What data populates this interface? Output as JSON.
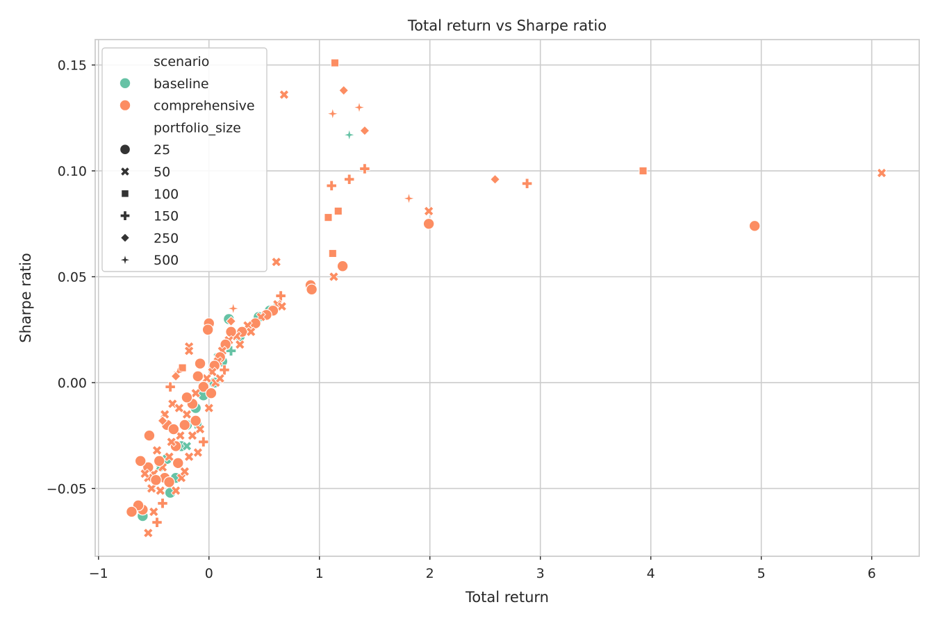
{
  "chart_data": {
    "type": "scatter",
    "title": "Total return vs Sharpe ratio",
    "xlabel": "Total return",
    "ylabel": "Sharpe ratio",
    "xlim": [
      -1.03,
      6.43
    ],
    "ylim": [
      -0.082,
      0.162
    ],
    "x_ticks": [
      -1,
      0,
      1,
      2,
      3,
      4,
      5,
      6
    ],
    "x_tick_labels": [
      "−1",
      "0",
      "1",
      "2",
      "3",
      "4",
      "5",
      "6"
    ],
    "y_ticks": [
      -0.05,
      0.0,
      0.05,
      0.1,
      0.15
    ],
    "y_tick_labels": [
      "−0.05",
      "0.00",
      "0.05",
      "0.10",
      "0.15"
    ],
    "grid": true,
    "legend_placement": "top-left",
    "legend": {
      "hue_title": "scenario",
      "hue_entries": [
        {
          "label": "baseline",
          "color": "#66c2a5"
        },
        {
          "label": "comprehensive",
          "color": "#fc8d62"
        }
      ],
      "style_title": "portfolio_size",
      "style_entries": [
        {
          "label": "25",
          "marker": "circle"
        },
        {
          "label": "50",
          "marker": "x"
        },
        {
          "label": "100",
          "marker": "square"
        },
        {
          "label": "150",
          "marker": "plus"
        },
        {
          "label": "250",
          "marker": "diamond"
        },
        {
          "label": "500",
          "marker": "star"
        }
      ]
    },
    "series": [
      {
        "name": "baseline",
        "color": "#66c2a5",
        "points": [
          {
            "x": 1.27,
            "y": 0.117,
            "marker": "star"
          },
          {
            "x": -0.38,
            "y": -0.036,
            "marker": "circle"
          },
          {
            "x": -0.35,
            "y": -0.052,
            "marker": "circle"
          },
          {
            "x": -0.3,
            "y": -0.045,
            "marker": "circle"
          },
          {
            "x": -0.25,
            "y": -0.03,
            "marker": "circle"
          },
          {
            "x": -0.2,
            "y": -0.02,
            "marker": "circle"
          },
          {
            "x": -0.12,
            "y": -0.012,
            "marker": "circle"
          },
          {
            "x": -0.05,
            "y": -0.006,
            "marker": "circle"
          },
          {
            "x": 0.05,
            "y": 0.0,
            "marker": "circle"
          },
          {
            "x": 0.12,
            "y": 0.01,
            "marker": "circle"
          },
          {
            "x": 0.18,
            "y": 0.03,
            "marker": "circle"
          },
          {
            "x": 0.28,
            "y": 0.022,
            "marker": "circle"
          },
          {
            "x": 0.45,
            "y": 0.031,
            "marker": "circle"
          },
          {
            "x": 0.55,
            "y": 0.034,
            "marker": "circle"
          },
          {
            "x": -0.6,
            "y": -0.063,
            "marker": "circle"
          },
          {
            "x": -0.45,
            "y": -0.04,
            "marker": "x"
          },
          {
            "x": -0.2,
            "y": -0.03,
            "marker": "x"
          },
          {
            "x": 0.08,
            "y": 0.012,
            "marker": "x"
          },
          {
            "x": 0.35,
            "y": 0.025,
            "marker": "x"
          },
          {
            "x": 0.6,
            "y": 0.036,
            "marker": "plus"
          },
          {
            "x": -0.1,
            "y": -0.02,
            "marker": "square"
          },
          {
            "x": 0.2,
            "y": 0.015,
            "marker": "plus"
          }
        ]
      },
      {
        "name": "comprehensive",
        "color": "#fc8d62",
        "points": [
          {
            "x": 1.14,
            "y": 0.151,
            "marker": "square"
          },
          {
            "x": 0.68,
            "y": 0.136,
            "marker": "x"
          },
          {
            "x": 1.22,
            "y": 0.138,
            "marker": "diamond"
          },
          {
            "x": 1.12,
            "y": 0.127,
            "marker": "star"
          },
          {
            "x": 1.36,
            "y": 0.13,
            "marker": "star"
          },
          {
            "x": 1.41,
            "y": 0.119,
            "marker": "diamond"
          },
          {
            "x": 1.41,
            "y": 0.101,
            "marker": "plus"
          },
          {
            "x": 1.27,
            "y": 0.096,
            "marker": "plus"
          },
          {
            "x": 1.11,
            "y": 0.093,
            "marker": "plus"
          },
          {
            "x": 1.17,
            "y": 0.081,
            "marker": "square"
          },
          {
            "x": 1.08,
            "y": 0.078,
            "marker": "square"
          },
          {
            "x": 1.12,
            "y": 0.061,
            "marker": "square"
          },
          {
            "x": 1.21,
            "y": 0.055,
            "marker": "circle"
          },
          {
            "x": 1.13,
            "y": 0.05,
            "marker": "x"
          },
          {
            "x": 1.81,
            "y": 0.087,
            "marker": "star"
          },
          {
            "x": 1.99,
            "y": 0.081,
            "marker": "x"
          },
          {
            "x": 1.99,
            "y": 0.075,
            "marker": "circle"
          },
          {
            "x": 2.59,
            "y": 0.096,
            "marker": "diamond"
          },
          {
            "x": 2.88,
            "y": 0.094,
            "marker": "plus"
          },
          {
            "x": 3.93,
            "y": 0.1,
            "marker": "square"
          },
          {
            "x": 4.94,
            "y": 0.074,
            "marker": "circle"
          },
          {
            "x": 6.09,
            "y": 0.099,
            "marker": "x"
          },
          {
            "x": 0.61,
            "y": 0.057,
            "marker": "x"
          },
          {
            "x": 0.92,
            "y": 0.046,
            "marker": "circle"
          },
          {
            "x": 0.93,
            "y": 0.044,
            "marker": "circle"
          },
          {
            "x": 0.65,
            "y": 0.041,
            "marker": "plus"
          },
          {
            "x": 0.62,
            "y": 0.037,
            "marker": "x"
          },
          {
            "x": 0.66,
            "y": 0.036,
            "marker": "x"
          },
          {
            "x": 0.58,
            "y": 0.034,
            "marker": "circle"
          },
          {
            "x": 0.52,
            "y": 0.032,
            "marker": "circle"
          },
          {
            "x": 0.47,
            "y": 0.031,
            "marker": "x"
          },
          {
            "x": 0.42,
            "y": 0.028,
            "marker": "circle"
          },
          {
            "x": 0.35,
            "y": 0.027,
            "marker": "x"
          },
          {
            "x": 0.3,
            "y": 0.024,
            "marker": "circle"
          },
          {
            "x": 0.25,
            "y": 0.022,
            "marker": "x"
          },
          {
            "x": 0.22,
            "y": 0.035,
            "marker": "star"
          },
          {
            "x": 0.2,
            "y": 0.029,
            "marker": "diamond"
          },
          {
            "x": 0.2,
            "y": 0.024,
            "marker": "circle"
          },
          {
            "x": 0.18,
            "y": 0.02,
            "marker": "x"
          },
          {
            "x": 0.15,
            "y": 0.018,
            "marker": "circle"
          },
          {
            "x": 0.12,
            "y": 0.015,
            "marker": "x"
          },
          {
            "x": 0.1,
            "y": 0.012,
            "marker": "circle"
          },
          {
            "x": 0.08,
            "y": 0.01,
            "marker": "x"
          },
          {
            "x": 0.05,
            "y": 0.008,
            "marker": "circle"
          },
          {
            "x": 0.03,
            "y": 0.005,
            "marker": "x"
          },
          {
            "x": 0.0,
            "y": 0.028,
            "marker": "circle"
          },
          {
            "x": -0.01,
            "y": 0.025,
            "marker": "circle"
          },
          {
            "x": -0.02,
            "y": 0.002,
            "marker": "x"
          },
          {
            "x": -0.05,
            "y": -0.002,
            "marker": "circle"
          },
          {
            "x": -0.08,
            "y": 0.009,
            "marker": "circle"
          },
          {
            "x": -0.1,
            "y": 0.003,
            "marker": "circle"
          },
          {
            "x": -0.12,
            "y": -0.005,
            "marker": "x"
          },
          {
            "x": -0.15,
            "y": -0.01,
            "marker": "circle"
          },
          {
            "x": -0.18,
            "y": 0.017,
            "marker": "x"
          },
          {
            "x": -0.18,
            "y": 0.015,
            "marker": "x"
          },
          {
            "x": -0.2,
            "y": -0.015,
            "marker": "x"
          },
          {
            "x": -0.22,
            "y": -0.02,
            "marker": "circle"
          },
          {
            "x": -0.24,
            "y": 0.007,
            "marker": "square"
          },
          {
            "x": -0.26,
            "y": -0.025,
            "marker": "x"
          },
          {
            "x": -0.28,
            "y": 0.005,
            "marker": "star"
          },
          {
            "x": -0.3,
            "y": 0.003,
            "marker": "diamond"
          },
          {
            "x": -0.3,
            "y": -0.03,
            "marker": "circle"
          },
          {
            "x": -0.33,
            "y": -0.01,
            "marker": "x"
          },
          {
            "x": -0.35,
            "y": -0.002,
            "marker": "plus"
          },
          {
            "x": -0.36,
            "y": -0.035,
            "marker": "x"
          },
          {
            "x": -0.38,
            "y": -0.02,
            "marker": "circle"
          },
          {
            "x": -0.4,
            "y": -0.015,
            "marker": "x"
          },
          {
            "x": -0.42,
            "y": -0.018,
            "marker": "diamond"
          },
          {
            "x": -0.4,
            "y": -0.045,
            "marker": "circle"
          },
          {
            "x": -0.42,
            "y": -0.04,
            "marker": "x"
          },
          {
            "x": -0.45,
            "y": -0.037,
            "marker": "circle"
          },
          {
            "x": -0.47,
            "y": -0.032,
            "marker": "x"
          },
          {
            "x": -0.5,
            "y": -0.043,
            "marker": "x"
          },
          {
            "x": -0.52,
            "y": -0.05,
            "marker": "x"
          },
          {
            "x": -0.54,
            "y": -0.025,
            "marker": "circle"
          },
          {
            "x": -0.55,
            "y": -0.04,
            "marker": "circle"
          },
          {
            "x": -0.55,
            "y": -0.045,
            "marker": "x"
          },
          {
            "x": -0.6,
            "y": -0.06,
            "marker": "circle"
          },
          {
            "x": -0.62,
            "y": -0.037,
            "marker": "circle"
          },
          {
            "x": -0.64,
            "y": -0.058,
            "marker": "circle"
          },
          {
            "x": -0.7,
            "y": -0.061,
            "marker": "circle"
          },
          {
            "x": -0.5,
            "y": -0.061,
            "marker": "x"
          },
          {
            "x": -0.47,
            "y": -0.066,
            "marker": "plus"
          },
          {
            "x": -0.55,
            "y": -0.071,
            "marker": "x"
          },
          {
            "x": -0.42,
            "y": -0.057,
            "marker": "plus"
          },
          {
            "x": -0.3,
            "y": -0.051,
            "marker": "x"
          },
          {
            "x": -0.25,
            "y": -0.045,
            "marker": "x"
          },
          {
            "x": -0.22,
            "y": -0.042,
            "marker": "x"
          },
          {
            "x": -0.18,
            "y": -0.035,
            "marker": "x"
          },
          {
            "x": -0.1,
            "y": -0.033,
            "marker": "x"
          },
          {
            "x": -0.05,
            "y": -0.028,
            "marker": "plus"
          },
          {
            "x": -0.08,
            "y": -0.022,
            "marker": "x"
          },
          {
            "x": 0.0,
            "y": -0.012,
            "marker": "x"
          },
          {
            "x": 0.02,
            "y": -0.005,
            "marker": "circle"
          },
          {
            "x": 0.06,
            "y": 0.0,
            "marker": "x"
          },
          {
            "x": -0.2,
            "y": -0.007,
            "marker": "circle"
          },
          {
            "x": -0.27,
            "y": -0.012,
            "marker": "x"
          },
          {
            "x": -0.32,
            "y": -0.022,
            "marker": "circle"
          },
          {
            "x": -0.34,
            "y": -0.028,
            "marker": "x"
          },
          {
            "x": -0.12,
            "y": -0.018,
            "marker": "circle"
          },
          {
            "x": -0.15,
            "y": -0.025,
            "marker": "x"
          },
          {
            "x": 0.14,
            "y": 0.006,
            "marker": "plus"
          },
          {
            "x": 0.38,
            "y": 0.024,
            "marker": "x"
          },
          {
            "x": 0.28,
            "y": 0.018,
            "marker": "x"
          },
          {
            "x": 0.1,
            "y": 0.002,
            "marker": "x"
          },
          {
            "x": -0.28,
            "y": -0.038,
            "marker": "circle"
          },
          {
            "x": -0.36,
            "y": -0.047,
            "marker": "circle"
          },
          {
            "x": -0.44,
            "y": -0.051,
            "marker": "x"
          },
          {
            "x": -0.48,
            "y": -0.046,
            "marker": "circle"
          },
          {
            "x": -0.58,
            "y": -0.043,
            "marker": "x"
          }
        ]
      }
    ]
  }
}
